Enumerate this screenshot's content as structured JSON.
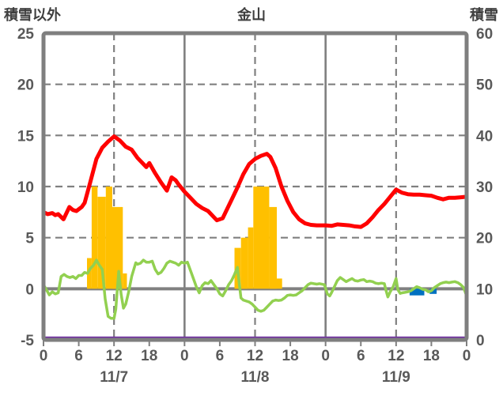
{
  "header": {
    "left_axis_title": "積雪以外",
    "title": "金山",
    "right_axis_title": "積雪"
  },
  "colors": {
    "border": "#7f7f7f",
    "grid": "#808080",
    "tick_text": "#595959",
    "header_text": "#3f3f3f",
    "red_line": "#ff0000",
    "green_line": "#92d050",
    "orange_bars": "#ffc000",
    "blue_bars": "#0070c0",
    "purple_line": "#7030a0"
  },
  "chart_data": {
    "type": "mixed",
    "title": "金山",
    "left_axis": {
      "label": "積雪以外",
      "min": -5,
      "max": 25,
      "ticks": [
        25,
        20,
        15,
        10,
        5,
        0,
        -5
      ]
    },
    "right_axis": {
      "label": "積雪",
      "min": 0,
      "max": 60,
      "ticks": [
        60,
        50,
        40,
        30,
        20,
        10,
        0
      ]
    },
    "x_axis": {
      "hours_total": 72,
      "tick_interval": 6,
      "tick_labels": [
        "0",
        "6",
        "12",
        "18",
        "0",
        "6",
        "12",
        "18",
        "0",
        "6",
        "12",
        "18",
        "0"
      ],
      "day_labels": [
        "11/7",
        "11/8",
        "11/9"
      ],
      "day_label_hours": [
        12,
        36,
        60
      ],
      "solid_gridline_hours": [
        24,
        48
      ],
      "dashed_gridline_hours": [
        12,
        36,
        60
      ]
    },
    "series": [
      {
        "name": "orange-bars",
        "type": "bars",
        "axis": "left",
        "color_key": "orange_bars",
        "bars": [
          [
            7.4,
            8.2,
            3
          ],
          [
            8.2,
            9.2,
            10
          ],
          [
            9.2,
            10.6,
            9
          ],
          [
            10.6,
            11.7,
            10
          ],
          [
            11.7,
            13.5,
            8
          ],
          [
            13.5,
            14.2,
            1.5
          ],
          [
            32.5,
            33.6,
            4
          ],
          [
            33.6,
            34.8,
            5
          ],
          [
            34.8,
            35.7,
            6
          ],
          [
            35.7,
            38.4,
            10
          ],
          [
            38.4,
            39.7,
            8
          ],
          [
            39.7,
            40.6,
            1
          ]
        ]
      },
      {
        "name": "blue-bars",
        "type": "bars",
        "axis": "left",
        "color_key": "blue_bars",
        "bars": [
          [
            62.3,
            64.8,
            -0.65
          ],
          [
            65.7,
            66.9,
            -0.5
          ]
        ]
      },
      {
        "name": "purple-line",
        "type": "line",
        "axis": "right",
        "color_key": "purple_line",
        "stroke_width": 3.2,
        "points": [
          [
            0,
            0.4
          ],
          [
            72,
            0.4
          ]
        ]
      },
      {
        "name": "green-line",
        "type": "line",
        "axis": "left",
        "color_key": "green_line",
        "stroke_width": 3.5,
        "points": [
          [
            0,
            0.4
          ],
          [
            0.5,
            -0.1
          ],
          [
            1,
            -0.6
          ],
          [
            1.5,
            -0.3
          ],
          [
            2,
            -0.5
          ],
          [
            2.5,
            -0.4
          ],
          [
            3,
            1.2
          ],
          [
            3.5,
            1.4
          ],
          [
            4,
            1.2
          ],
          [
            4.5,
            1.1
          ],
          [
            5,
            1.2
          ],
          [
            5.5,
            1.0
          ],
          [
            6,
            1.3
          ],
          [
            6.5,
            1.3
          ],
          [
            7,
            1.6
          ],
          [
            7.5,
            1.5
          ],
          [
            8,
            2.0
          ],
          [
            8.5,
            2.3
          ],
          [
            9,
            2.8
          ],
          [
            9.5,
            2.3
          ],
          [
            10,
            1.9
          ],
          [
            10.5,
            -1.0
          ],
          [
            11,
            -2.7
          ],
          [
            11.5,
            -2.9
          ],
          [
            12,
            -2.9
          ],
          [
            12.3,
            -2.0
          ],
          [
            12.8,
            1.7
          ],
          [
            13.2,
            -0.5
          ],
          [
            13.6,
            -1.9
          ],
          [
            14,
            -1.5
          ],
          [
            14.5,
            -0.3
          ],
          [
            15,
            1.2
          ],
          [
            15.7,
            2.55
          ],
          [
            16,
            2.4
          ],
          [
            16.5,
            2.5
          ],
          [
            17,
            2.8
          ],
          [
            17.5,
            2.6
          ],
          [
            18,
            2.6
          ],
          [
            18.5,
            2.7
          ],
          [
            19,
            1.9
          ],
          [
            19.5,
            1.45
          ],
          [
            20,
            1.6
          ],
          [
            20.5,
            2.0
          ],
          [
            21,
            2.5
          ],
          [
            21.5,
            2.7
          ],
          [
            22,
            2.6
          ],
          [
            22.5,
            2.5
          ],
          [
            23,
            2.3
          ],
          [
            23.5,
            2.6
          ],
          [
            24,
            2.5
          ],
          [
            24.5,
            2.6
          ],
          [
            25,
            1.8
          ],
          [
            25.5,
            1.0
          ],
          [
            26,
            0.2
          ],
          [
            26.5,
            -0.4
          ],
          [
            27,
            0.3
          ],
          [
            27.5,
            0.6
          ],
          [
            28,
            0.5
          ],
          [
            28.5,
            0.8
          ],
          [
            29,
            0.4
          ],
          [
            29.5,
            0.0
          ],
          [
            30,
            -0.5
          ],
          [
            30.5,
            -0.7
          ],
          [
            31,
            -0.2
          ],
          [
            31.5,
            0.4
          ],
          [
            32,
            0.8
          ],
          [
            32.5,
            1.4
          ],
          [
            33,
            2.1
          ],
          [
            33.3,
            0.6
          ],
          [
            33.6,
            -0.9
          ],
          [
            34,
            -1.1
          ],
          [
            34.5,
            -1.2
          ],
          [
            35,
            -1.3
          ],
          [
            35.5,
            -1.5
          ],
          [
            36,
            -1.8
          ],
          [
            36.5,
            -2.1
          ],
          [
            37,
            -2.2
          ],
          [
            37.5,
            -2.1
          ],
          [
            38,
            -1.8
          ],
          [
            38.5,
            -1.5
          ],
          [
            39,
            -1.2
          ],
          [
            39.5,
            -1.1
          ],
          [
            40,
            -1.15
          ],
          [
            40.5,
            -1.1
          ],
          [
            41,
            -0.9
          ],
          [
            41.5,
            -0.65
          ],
          [
            42,
            -0.6
          ],
          [
            42.5,
            -0.65
          ],
          [
            43,
            -0.6
          ],
          [
            43.5,
            -0.4
          ],
          [
            44,
            -0.2
          ],
          [
            44.5,
            0.1
          ],
          [
            45,
            0.4
          ],
          [
            45.5,
            0.55
          ],
          [
            46,
            0.5
          ],
          [
            46.5,
            0.45
          ],
          [
            47,
            0.5
          ],
          [
            47.8,
            0.4
          ],
          [
            48.3,
            -0.5
          ],
          [
            48.7,
            -0.7
          ],
          [
            49,
            -0.4
          ],
          [
            49.5,
            0.2
          ],
          [
            50,
            0.8
          ],
          [
            50.5,
            1.1
          ],
          [
            51,
            0.9
          ],
          [
            51.5,
            0.7
          ],
          [
            52,
            0.85
          ],
          [
            52.5,
            1.0
          ],
          [
            53,
            0.8
          ],
          [
            53.5,
            0.75
          ],
          [
            54,
            0.85
          ],
          [
            54.5,
            0.9
          ],
          [
            55,
            0.7
          ],
          [
            55.5,
            0.75
          ],
          [
            56,
            0.7
          ],
          [
            56.5,
            0.55
          ],
          [
            57,
            0.5
          ],
          [
            57.5,
            0.55
          ],
          [
            58,
            0.5
          ],
          [
            58.3,
            -0.2
          ],
          [
            58.6,
            -0.8
          ],
          [
            59,
            -0.3
          ],
          [
            59.5,
            0.2
          ],
          [
            60,
            1.0
          ],
          [
            60.3,
            -0.1
          ],
          [
            60.7,
            -0.45
          ],
          [
            61,
            -0.4
          ],
          [
            61.5,
            -0.35
          ],
          [
            62,
            -0.3
          ],
          [
            62.5,
            -0.2
          ],
          [
            63,
            0.0
          ],
          [
            63.5,
            0.2
          ],
          [
            64,
            0.1
          ],
          [
            64.5,
            -0.05
          ],
          [
            65,
            -0.1
          ],
          [
            65.5,
            -0.3
          ],
          [
            66,
            -0.2
          ],
          [
            66.5,
            0.1
          ],
          [
            67,
            0.3
          ],
          [
            67.5,
            0.5
          ],
          [
            68,
            0.6
          ],
          [
            68.5,
            0.65
          ],
          [
            69,
            0.6
          ],
          [
            69.5,
            0.65
          ],
          [
            70,
            0.7
          ],
          [
            70.5,
            0.6
          ],
          [
            71,
            0.4
          ],
          [
            71.5,
            0.1
          ],
          [
            72,
            -0.7
          ]
        ]
      },
      {
        "name": "red-line",
        "type": "line",
        "axis": "left",
        "color_key": "red_line",
        "stroke_width": 5,
        "points": [
          [
            0,
            7.5
          ],
          [
            0.7,
            7.3
          ],
          [
            1.5,
            7.4
          ],
          [
            2,
            7.2
          ],
          [
            2.5,
            7.3
          ],
          [
            3.4,
            6.8
          ],
          [
            4.4,
            8.0
          ],
          [
            5,
            7.7
          ],
          [
            5.6,
            7.6
          ],
          [
            6.5,
            8.0
          ],
          [
            7,
            8.4
          ],
          [
            8,
            10.5
          ],
          [
            9,
            12.7
          ],
          [
            10,
            13.8
          ],
          [
            11,
            14.4
          ],
          [
            12,
            14.9
          ],
          [
            13,
            14.5
          ],
          [
            14,
            13.9
          ],
          [
            15,
            13.6
          ],
          [
            16,
            12.8
          ],
          [
            17,
            12.2
          ],
          [
            17.5,
            11.9
          ],
          [
            18,
            12.3
          ],
          [
            19,
            11.3
          ],
          [
            20,
            10.4
          ],
          [
            21,
            9.6
          ],
          [
            21.8,
            10.9
          ],
          [
            22.5,
            10.6
          ],
          [
            23,
            10.2
          ],
          [
            24,
            9.5
          ],
          [
            25,
            8.9
          ],
          [
            26,
            8.3
          ],
          [
            27,
            7.9
          ],
          [
            28,
            7.6
          ],
          [
            29,
            7.0
          ],
          [
            29.5,
            6.7
          ],
          [
            30.5,
            6.9
          ],
          [
            31,
            7.5
          ],
          [
            32,
            8.7
          ],
          [
            33,
            9.9
          ],
          [
            34,
            11.2
          ],
          [
            35,
            12.2
          ],
          [
            36,
            12.7
          ],
          [
            37,
            13.0
          ],
          [
            38,
            13.2
          ],
          [
            38.6,
            12.9
          ],
          [
            39.5,
            11.8
          ],
          [
            40.5,
            10.0
          ],
          [
            41.5,
            8.6
          ],
          [
            42.5,
            7.5
          ],
          [
            43.5,
            6.8
          ],
          [
            44.5,
            6.4
          ],
          [
            45.5,
            6.25
          ],
          [
            46.5,
            6.2
          ],
          [
            48,
            6.2
          ],
          [
            49,
            6.15
          ],
          [
            50,
            6.3
          ],
          [
            51,
            6.25
          ],
          [
            52,
            6.2
          ],
          [
            53,
            6.1
          ],
          [
            54,
            6.05
          ],
          [
            55,
            6.4
          ],
          [
            56,
            7.0
          ],
          [
            57,
            7.7
          ],
          [
            58,
            8.3
          ],
          [
            59,
            9.0
          ],
          [
            60,
            9.7
          ],
          [
            61,
            9.4
          ],
          [
            62,
            9.25
          ],
          [
            63,
            9.2
          ],
          [
            64,
            9.2
          ],
          [
            65,
            9.15
          ],
          [
            66,
            9.1
          ],
          [
            67,
            8.9
          ],
          [
            68,
            8.75
          ],
          [
            69,
            8.9
          ],
          [
            70,
            8.9
          ],
          [
            71,
            8.95
          ],
          [
            72,
            9.0
          ]
        ]
      }
    ]
  }
}
